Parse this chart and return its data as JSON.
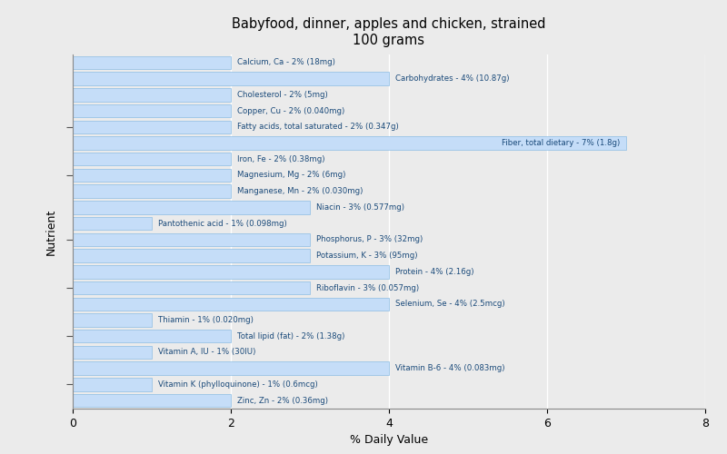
{
  "title": "Babyfood, dinner, apples and chicken, strained\n100 grams",
  "xlabel": "% Daily Value",
  "ylabel": "Nutrient",
  "xlim": [
    0,
    8
  ],
  "background_color": "#ebebeb",
  "bar_color": "#c5ddf8",
  "bar_edge_color": "#7ab3e0",
  "text_color": "#1a4a7a",
  "nutrients": [
    {
      "label": "Calcium, Ca - 2% (18mg)",
      "value": 2
    },
    {
      "label": "Carbohydrates - 4% (10.87g)",
      "value": 4
    },
    {
      "label": "Cholesterol - 2% (5mg)",
      "value": 2
    },
    {
      "label": "Copper, Cu - 2% (0.040mg)",
      "value": 2
    },
    {
      "label": "Fatty acids, total saturated - 2% (0.347g)",
      "value": 2
    },
    {
      "label": "Fiber, total dietary - 7% (1.8g)",
      "value": 7
    },
    {
      "label": "Iron, Fe - 2% (0.38mg)",
      "value": 2
    },
    {
      "label": "Magnesium, Mg - 2% (6mg)",
      "value": 2
    },
    {
      "label": "Manganese, Mn - 2% (0.030mg)",
      "value": 2
    },
    {
      "label": "Niacin - 3% (0.577mg)",
      "value": 3
    },
    {
      "label": "Pantothenic acid - 1% (0.098mg)",
      "value": 1
    },
    {
      "label": "Phosphorus, P - 3% (32mg)",
      "value": 3
    },
    {
      "label": "Potassium, K - 3% (95mg)",
      "value": 3
    },
    {
      "label": "Protein - 4% (2.16g)",
      "value": 4
    },
    {
      "label": "Riboflavin - 3% (0.057mg)",
      "value": 3
    },
    {
      "label": "Selenium, Se - 4% (2.5mcg)",
      "value": 4
    },
    {
      "label": "Thiamin - 1% (0.020mg)",
      "value": 1
    },
    {
      "label": "Total lipid (fat) - 2% (1.38g)",
      "value": 2
    },
    {
      "label": "Vitamin A, IU - 1% (30IU)",
      "value": 1
    },
    {
      "label": "Vitamin B-6 - 4% (0.083mg)",
      "value": 4
    },
    {
      "label": "Vitamin K (phylloquinone) - 1% (0.6mcg)",
      "value": 1
    },
    {
      "label": "Zinc, Zn - 2% (0.36mg)",
      "value": 2
    }
  ]
}
